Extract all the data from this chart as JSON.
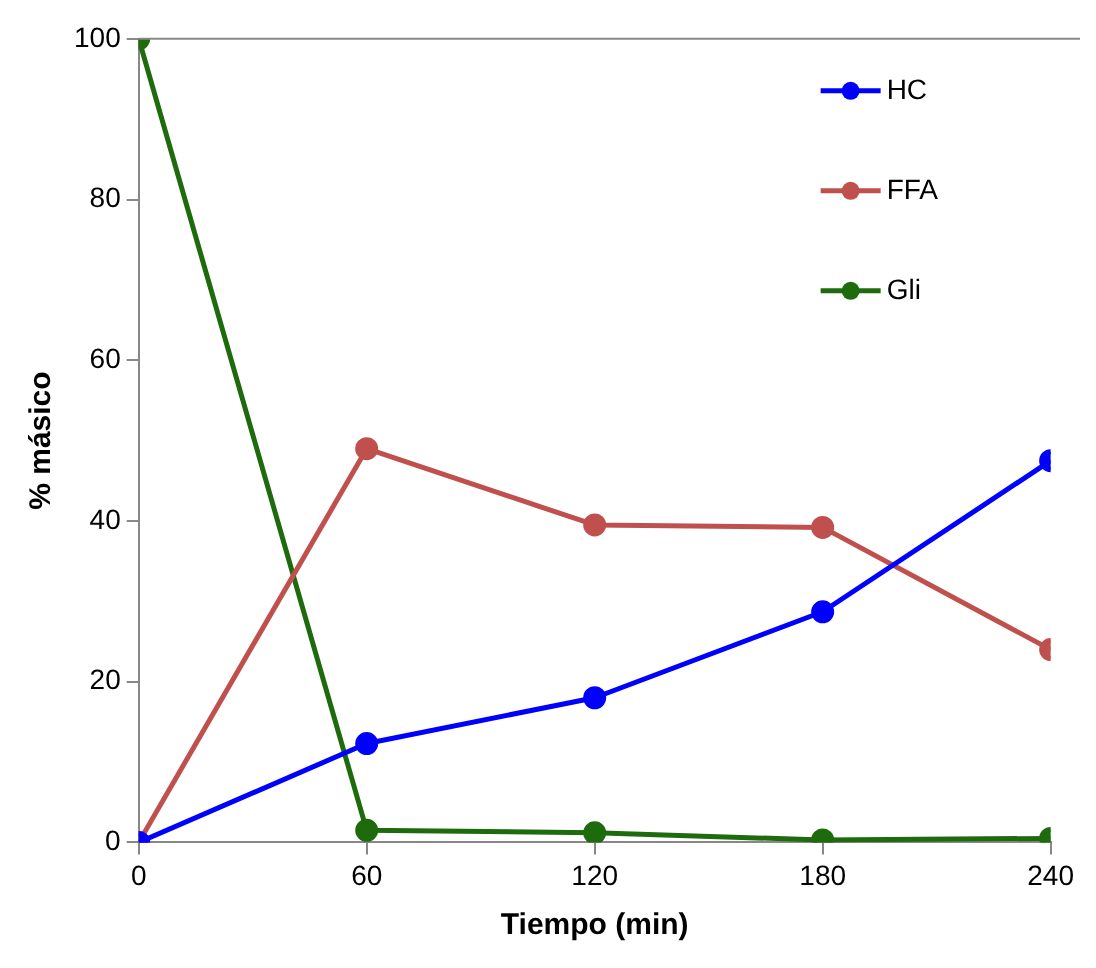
{
  "chart_data": {
    "type": "line",
    "xlabel": "Tiempo (min)",
    "ylabel": "% másico",
    "xlim": [
      0,
      240
    ],
    "xticks": [
      0,
      60,
      120,
      180,
      240
    ],
    "ylim": [
      0,
      100
    ],
    "yticks": [
      0,
      20,
      40,
      60,
      80,
      100
    ],
    "x": [
      0,
      60,
      120,
      180,
      240
    ],
    "series": [
      {
        "name": "HC",
        "color": "#0000ff",
        "values": [
          0,
          12.3,
          18,
          28.7,
          47.5
        ]
      },
      {
        "name": "FFA",
        "color": "#c0504d",
        "values": [
          0,
          49,
          39.5,
          39.2,
          24
        ]
      },
      {
        "name": "Gli",
        "color": "#1e6b0e",
        "values": [
          100,
          1.5,
          1.2,
          0.3,
          0.5
        ]
      }
    ],
    "grid": false,
    "legend": "top right",
    "marker": "circle",
    "line_style": "solid"
  }
}
